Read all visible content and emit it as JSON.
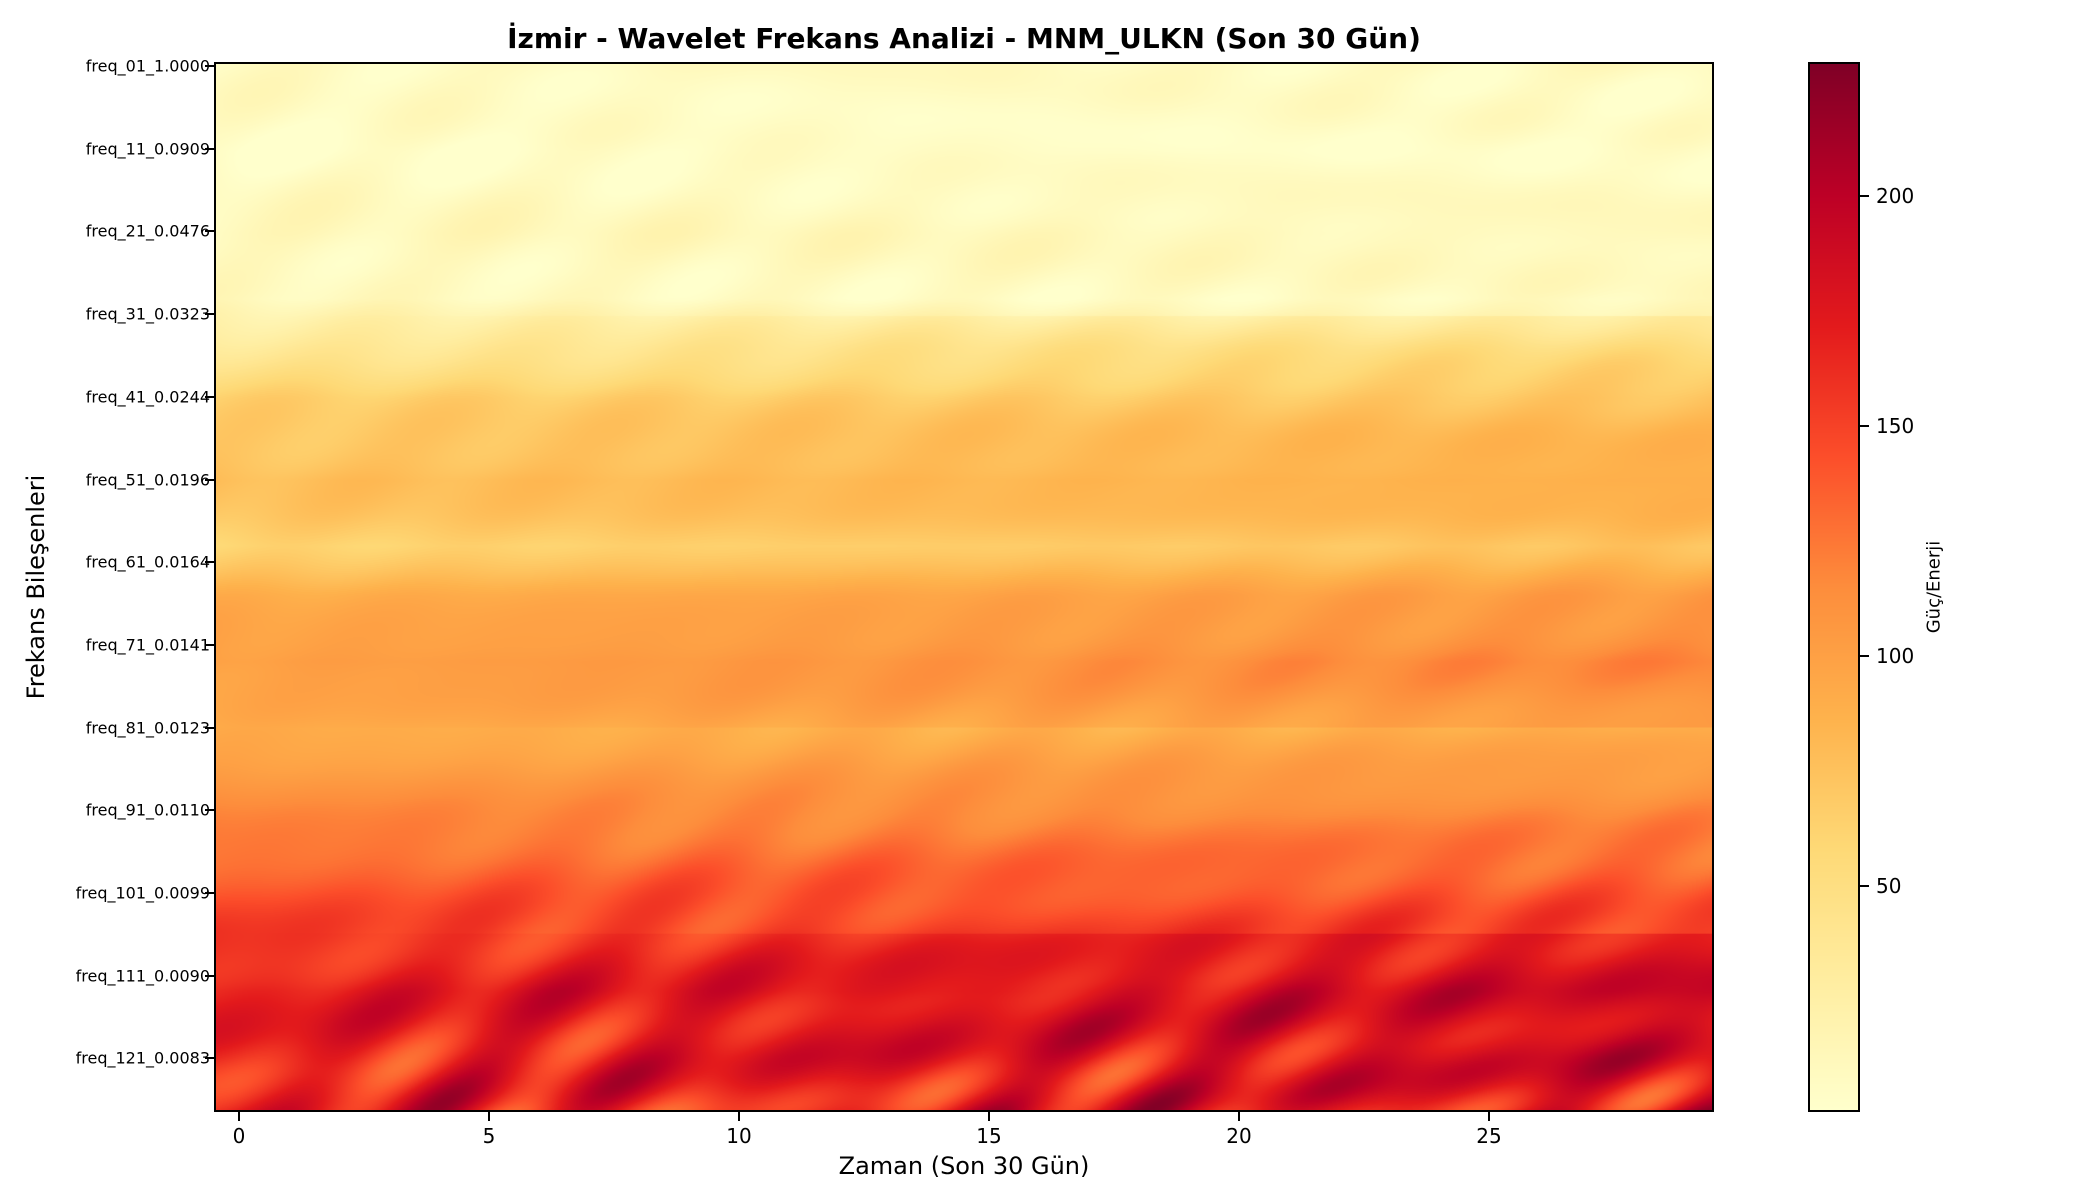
{
  "chart_data": {
    "type": "heatmap",
    "title": "İzmir - Wavelet Frekans Analizi - MNM_ULKN (Son 30 Gün)",
    "xlabel": "Zaman (Son 30 Gün)",
    "ylabel": "Frekans Bileşenleri",
    "colorbar_label": "Güç/Enerji",
    "colormap": "YlOrRd",
    "colormap_stops": [
      "#ffffcc",
      "#ffeda0",
      "#fed976",
      "#feb24c",
      "#fd8d3c",
      "#fc4e2a",
      "#e31a1c",
      "#bd0026",
      "#800026"
    ],
    "x": {
      "min": 0,
      "max": 29,
      "ticks": [
        0,
        5,
        10,
        15,
        20,
        25
      ]
    },
    "y_rows": 127,
    "y_tick_labels": [
      {
        "row": 0,
        "label": "freq_01_1.0000"
      },
      {
        "row": 10,
        "label": "freq_11_0.0909"
      },
      {
        "row": 20,
        "label": "freq_21_0.0476"
      },
      {
        "row": 30,
        "label": "freq_31_0.0323"
      },
      {
        "row": 40,
        "label": "freq_41_0.0244"
      },
      {
        "row": 50,
        "label": "freq_51_0.0196"
      },
      {
        "row": 60,
        "label": "freq_61_0.0164"
      },
      {
        "row": 70,
        "label": "freq_71_0.0141"
      },
      {
        "row": 80,
        "label": "freq_81_0.0123"
      },
      {
        "row": 90,
        "label": "freq_91_0.0110"
      },
      {
        "row": 100,
        "label": "freq_101_0.0099"
      },
      {
        "row": 110,
        "label": "freq_111_0.0090"
      },
      {
        "row": 120,
        "label": "freq_121_0.0083"
      }
    ],
    "colorbar": {
      "min": 1,
      "max": 229,
      "ticks": [
        50,
        100,
        150,
        200
      ]
    },
    "row_profile": [
      {
        "row": 0,
        "value": 8
      },
      {
        "row": 10,
        "value": 4
      },
      {
        "row": 20,
        "value": 12
      },
      {
        "row": 28,
        "value": 8
      },
      {
        "row": 34,
        "value": 38
      },
      {
        "row": 40,
        "value": 62
      },
      {
        "row": 50,
        "value": 78
      },
      {
        "row": 58,
        "value": 62
      },
      {
        "row": 64,
        "value": 88
      },
      {
        "row": 72,
        "value": 104
      },
      {
        "row": 80,
        "value": 90
      },
      {
        "row": 88,
        "value": 110
      },
      {
        "row": 96,
        "value": 130
      },
      {
        "row": 104,
        "value": 150
      },
      {
        "row": 112,
        "value": 170
      },
      {
        "row": 120,
        "value": 168
      },
      {
        "row": 126,
        "value": 160
      }
    ]
  }
}
